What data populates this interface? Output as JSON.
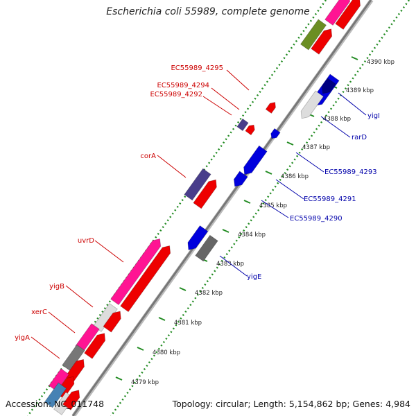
{
  "title": "Escherichia coli 55989, complete genome",
  "accession": "Accession: NC_011748",
  "topology": "Topology: circular; Length: 5,154,862 bp; Genes: 4,984",
  "colors": {
    "forward_label": "#cc0000",
    "reverse_label": "#0000aa",
    "dotted_track": "#228b22",
    "backbone": "#666666"
  },
  "ruler": [
    "4379 kbp",
    "4380 kbp",
    "4381 kbp",
    "4382 kbp",
    "4383 kbp",
    "4384 kbp",
    "4385 kbp",
    "4386 kbp",
    "4387 kbp",
    "4388 kbp",
    "4389 kbp",
    "4390 kbp"
  ],
  "labels_forward": [
    "EC55989_4295",
    "EC55989_4294",
    "EC55989_4292",
    "corA",
    "uvrD",
    "yigB",
    "xerC",
    "yigA"
  ],
  "labels_reverse": [
    "yigI",
    "rarD",
    "EC55989_4293",
    "EC55989_4291",
    "EC55989_4290",
    "yigE"
  ]
}
